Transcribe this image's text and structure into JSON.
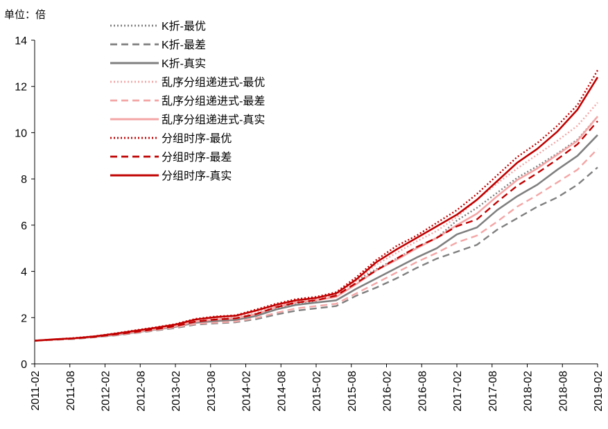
{
  "chart_data": {
    "type": "line",
    "unit_label": "单位：倍",
    "x_tick_labels": [
      "2011-02",
      "2011-08",
      "2012-02",
      "2012-08",
      "2013-02",
      "2013-08",
      "2014-02",
      "2014-08",
      "2015-02",
      "2015-08",
      "2016-02",
      "2016-08",
      "2017-02",
      "2017-08",
      "2018-02",
      "2018-08",
      "2019-02"
    ],
    "x_tick_months": [
      0,
      6,
      12,
      18,
      24,
      30,
      36,
      42,
      48,
      54,
      60,
      66,
      72,
      78,
      84,
      90,
      96
    ],
    "ylim": [
      0,
      14
    ],
    "y_ticks": [
      0,
      2,
      4,
      6,
      8,
      10,
      12,
      14
    ],
    "grid": false,
    "legend_position": "top-left",
    "colors": {
      "gray": "#7f7f7f",
      "pink": "#f4a5a5",
      "red": "#c00000"
    },
    "series": [
      {
        "name": "K折-最优",
        "color": "#7f7f7f",
        "style": "dotted",
        "values": [
          1.0,
          1.05,
          1.1,
          1.17,
          1.27,
          1.38,
          1.5,
          1.62,
          1.82,
          1.9,
          1.95,
          2.15,
          2.42,
          2.62,
          2.72,
          3.0,
          3.6,
          4.1,
          4.55,
          5.05,
          5.45,
          6.2,
          6.75,
          7.4,
          8.05,
          8.55,
          9.1,
          9.7,
          10.7
        ]
      },
      {
        "name": "K折-最差",
        "color": "#7f7f7f",
        "style": "dashed",
        "values": [
          1.0,
          1.04,
          1.08,
          1.15,
          1.23,
          1.33,
          1.44,
          1.55,
          1.7,
          1.75,
          1.8,
          1.93,
          2.13,
          2.3,
          2.4,
          2.5,
          2.95,
          3.3,
          3.7,
          4.15,
          4.55,
          4.85,
          5.15,
          5.8,
          6.3,
          6.8,
          7.2,
          7.75,
          8.5
        ]
      },
      {
        "name": "K折-真实",
        "color": "#7f7f7f",
        "style": "solid",
        "values": [
          1.0,
          1.05,
          1.1,
          1.16,
          1.25,
          1.36,
          1.48,
          1.6,
          1.78,
          1.85,
          1.9,
          2.07,
          2.35,
          2.55,
          2.65,
          2.75,
          3.25,
          3.7,
          4.15,
          4.6,
          5.0,
          5.6,
          5.9,
          6.65,
          7.25,
          7.75,
          8.4,
          9.0,
          9.9
        ]
      },
      {
        "name": "乱序分组递进式-最优",
        "color": "#f4a5a5",
        "style": "dotted",
        "values": [
          1.0,
          1.05,
          1.1,
          1.17,
          1.28,
          1.4,
          1.52,
          1.65,
          1.85,
          1.95,
          2.0,
          2.2,
          2.5,
          2.7,
          2.8,
          3.0,
          3.6,
          4.3,
          4.8,
          5.3,
          5.75,
          6.35,
          7.1,
          7.8,
          8.45,
          9.05,
          9.65,
          10.3,
          11.3
        ]
      },
      {
        "name": "乱序分组递进式-最差",
        "color": "#f4a5a5",
        "style": "dashed",
        "values": [
          1.0,
          1.04,
          1.09,
          1.16,
          1.24,
          1.35,
          1.46,
          1.58,
          1.73,
          1.78,
          1.83,
          1.98,
          2.2,
          2.4,
          2.5,
          2.6,
          3.05,
          3.5,
          3.95,
          4.4,
          4.8,
          5.25,
          5.55,
          6.15,
          6.8,
          7.3,
          7.85,
          8.4,
          9.3
        ]
      },
      {
        "name": "乱序分组递进式-真实",
        "color": "#f4a5a5",
        "style": "solid",
        "values": [
          1.0,
          1.05,
          1.1,
          1.17,
          1.27,
          1.38,
          1.5,
          1.63,
          1.83,
          1.92,
          1.97,
          2.15,
          2.45,
          2.65,
          2.75,
          2.9,
          3.45,
          4.05,
          4.5,
          5.0,
          5.45,
          6.0,
          6.5,
          7.25,
          7.95,
          8.45,
          9.05,
          9.65,
          10.7
        ]
      },
      {
        "name": "分组时序-最优",
        "color": "#c00000",
        "style": "dotted",
        "values": [
          1.0,
          1.06,
          1.12,
          1.2,
          1.32,
          1.45,
          1.58,
          1.72,
          1.95,
          2.05,
          2.1,
          2.35,
          2.6,
          2.8,
          2.9,
          3.1,
          3.75,
          4.5,
          5.1,
          5.55,
          6.1,
          6.65,
          7.35,
          8.15,
          8.95,
          9.55,
          10.3,
          11.2,
          12.7
        ]
      },
      {
        "name": "分组时序-最差",
        "color": "#c00000",
        "style": "dashed",
        "values": [
          1.0,
          1.05,
          1.1,
          1.17,
          1.27,
          1.38,
          1.5,
          1.63,
          1.83,
          1.92,
          1.97,
          2.15,
          2.45,
          2.65,
          2.75,
          2.95,
          3.5,
          4.05,
          4.55,
          5.05,
          5.45,
          5.95,
          6.25,
          7.0,
          7.7,
          8.25,
          8.85,
          9.5,
          10.5
        ]
      },
      {
        "name": "分组时序-真实",
        "color": "#c00000",
        "style": "solid",
        "values": [
          1.0,
          1.06,
          1.11,
          1.19,
          1.3,
          1.43,
          1.56,
          1.7,
          1.92,
          2.02,
          2.08,
          2.3,
          2.55,
          2.75,
          2.85,
          3.05,
          3.65,
          4.4,
          4.95,
          5.45,
          5.95,
          6.45,
          7.1,
          7.9,
          8.7,
          9.3,
          10.05,
          11.0,
          12.4
        ]
      }
    ]
  }
}
